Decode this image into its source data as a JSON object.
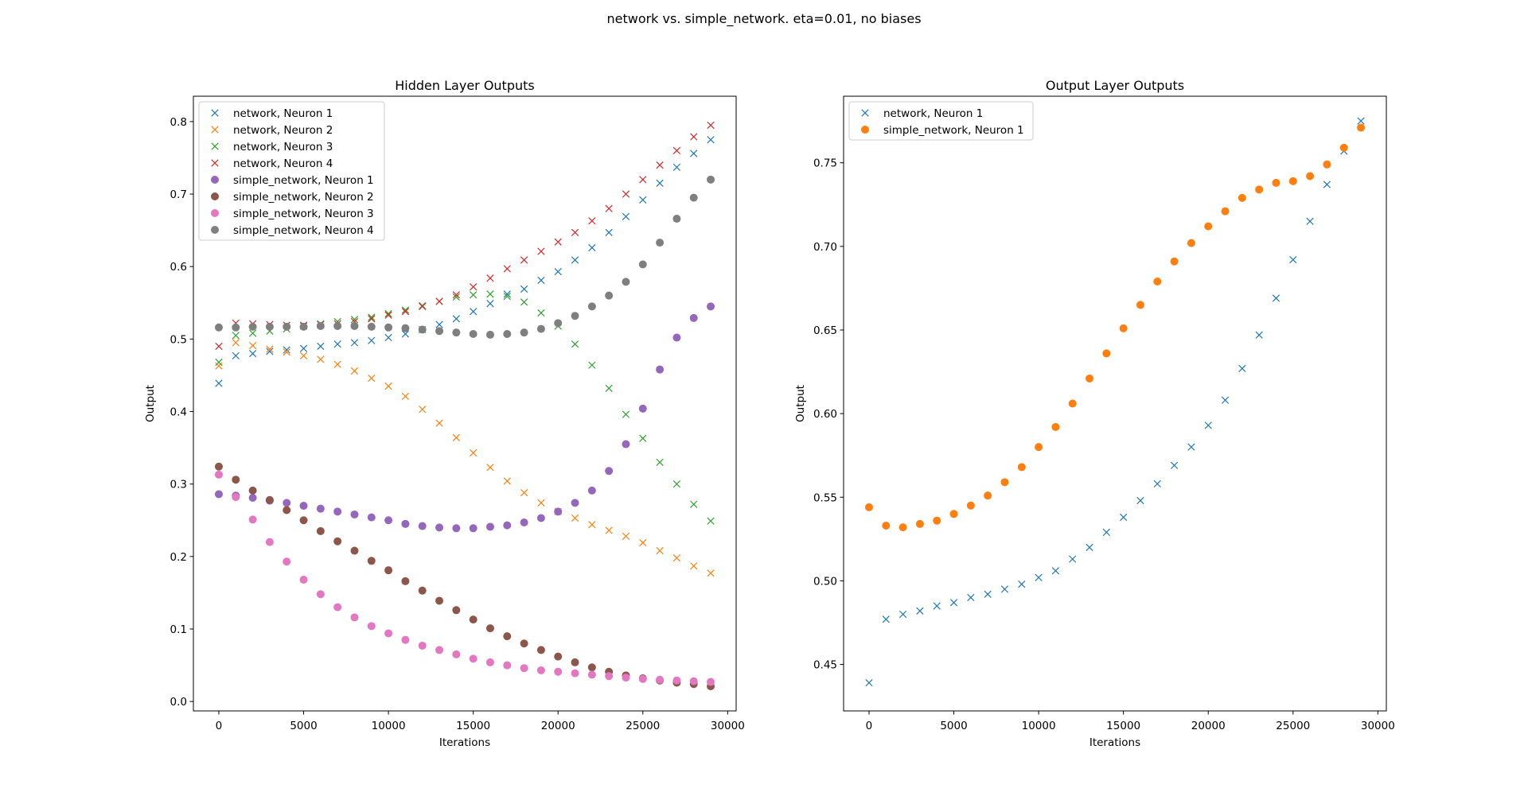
{
  "figure": {
    "suptitle": "network vs. simple_network. eta=0.01, no biases"
  },
  "chart_data": [
    {
      "type": "scatter",
      "title": "Hidden Layer Outputs",
      "xlabel": "Iterations",
      "ylabel": "Output",
      "xlim": [
        -1500,
        30500
      ],
      "ylim": [
        -0.013,
        0.835
      ],
      "xticks": [
        0,
        5000,
        10000,
        15000,
        20000,
        25000,
        30000
      ],
      "yticks": [
        0.0,
        0.1,
        0.2,
        0.3,
        0.4,
        0.5,
        0.6,
        0.7,
        0.8
      ],
      "ytick_decimals": 1,
      "grid": false,
      "legend_position": "upper-left",
      "x": [
        0,
        1000,
        2000,
        3000,
        4000,
        5000,
        6000,
        7000,
        8000,
        9000,
        10000,
        11000,
        12000,
        13000,
        14000,
        15000,
        16000,
        17000,
        18000,
        19000,
        20000,
        21000,
        22000,
        23000,
        24000,
        25000,
        26000,
        27000,
        28000,
        29000
      ],
      "series": [
        {
          "name": "network, Neuron 1",
          "marker": "x",
          "color": "#1f77b4",
          "values": [
            0.439,
            0.477,
            0.48,
            0.483,
            0.485,
            0.487,
            0.49,
            0.493,
            0.495,
            0.498,
            0.502,
            0.507,
            0.513,
            0.52,
            0.528,
            0.538,
            0.549,
            0.562,
            0.569,
            0.581,
            0.593,
            0.609,
            0.626,
            0.647,
            0.669,
            0.692,
            0.715,
            0.737,
            0.756,
            0.775
          ]
        },
        {
          "name": "network, Neuron 2",
          "marker": "x",
          "color": "#ff7f0e",
          "values": [
            0.463,
            0.495,
            0.491,
            0.486,
            0.482,
            0.477,
            0.472,
            0.465,
            0.456,
            0.446,
            0.435,
            0.421,
            0.403,
            0.384,
            0.364,
            0.343,
            0.323,
            0.304,
            0.288,
            0.274,
            0.262,
            0.253,
            0.244,
            0.236,
            0.228,
            0.219,
            0.208,
            0.198,
            0.187,
            0.177
          ]
        },
        {
          "name": "network, Neuron 3",
          "marker": "x",
          "color": "#2ca02c",
          "values": [
            0.468,
            0.505,
            0.508,
            0.511,
            0.514,
            0.518,
            0.521,
            0.524,
            0.527,
            0.53,
            0.535,
            0.54,
            0.546,
            0.552,
            0.558,
            0.561,
            0.562,
            0.559,
            0.551,
            0.536,
            0.518,
            0.493,
            0.464,
            0.432,
            0.396,
            0.363,
            0.33,
            0.3,
            0.272,
            0.249
          ]
        },
        {
          "name": "network, Neuron 4",
          "marker": "x",
          "color": "#d62728",
          "values": [
            0.49,
            0.522,
            0.521,
            0.52,
            0.519,
            0.519,
            0.52,
            0.521,
            0.524,
            0.528,
            0.533,
            0.538,
            0.545,
            0.552,
            0.561,
            0.572,
            0.584,
            0.597,
            0.609,
            0.621,
            0.634,
            0.647,
            0.663,
            0.68,
            0.7,
            0.72,
            0.74,
            0.76,
            0.779,
            0.795
          ]
        },
        {
          "name": "simple_network, Neuron 1",
          "marker": "o",
          "color": "#9467bd",
          "values": [
            0.286,
            0.284,
            0.281,
            0.277,
            0.274,
            0.27,
            0.266,
            0.262,
            0.258,
            0.254,
            0.25,
            0.245,
            0.242,
            0.24,
            0.239,
            0.239,
            0.241,
            0.243,
            0.247,
            0.253,
            0.262,
            0.274,
            0.291,
            0.318,
            0.355,
            0.404,
            0.458,
            0.502,
            0.529,
            0.545
          ]
        },
        {
          "name": "simple_network, Neuron 2",
          "marker": "o",
          "color": "#8c564b",
          "values": [
            0.324,
            0.306,
            0.291,
            0.278,
            0.264,
            0.25,
            0.235,
            0.221,
            0.208,
            0.194,
            0.181,
            0.166,
            0.153,
            0.139,
            0.126,
            0.113,
            0.101,
            0.09,
            0.08,
            0.071,
            0.062,
            0.054,
            0.047,
            0.041,
            0.036,
            0.032,
            0.029,
            0.026,
            0.024,
            0.021
          ]
        },
        {
          "name": "simple_network, Neuron 3",
          "marker": "o",
          "color": "#e377c2",
          "values": [
            0.313,
            0.282,
            0.251,
            0.22,
            0.193,
            0.168,
            0.148,
            0.13,
            0.116,
            0.104,
            0.094,
            0.085,
            0.077,
            0.071,
            0.065,
            0.059,
            0.054,
            0.05,
            0.046,
            0.043,
            0.041,
            0.039,
            0.037,
            0.035,
            0.033,
            0.031,
            0.03,
            0.029,
            0.028,
            0.027
          ]
        },
        {
          "name": "simple_network, Neuron 4",
          "marker": "o",
          "color": "#7f7f7f",
          "values": [
            0.516,
            0.516,
            0.517,
            0.517,
            0.517,
            0.517,
            0.518,
            0.518,
            0.518,
            0.517,
            0.516,
            0.515,
            0.513,
            0.511,
            0.509,
            0.507,
            0.506,
            0.507,
            0.509,
            0.514,
            0.522,
            0.532,
            0.545,
            0.56,
            0.579,
            0.603,
            0.633,
            0.666,
            0.695,
            0.72
          ]
        }
      ]
    },
    {
      "type": "scatter",
      "title": "Output Layer Outputs",
      "xlabel": "Iterations",
      "ylabel": "Output",
      "xlim": [
        -1500,
        30500
      ],
      "ylim": [
        0.4222,
        0.7898
      ],
      "xticks": [
        0,
        5000,
        10000,
        15000,
        20000,
        25000,
        30000
      ],
      "yticks": [
        0.45,
        0.5,
        0.55,
        0.6,
        0.65,
        0.7,
        0.75
      ],
      "ytick_decimals": 2,
      "grid": false,
      "legend_position": "upper-left",
      "x": [
        0,
        1000,
        2000,
        3000,
        4000,
        5000,
        6000,
        7000,
        8000,
        9000,
        10000,
        11000,
        12000,
        13000,
        14000,
        15000,
        16000,
        17000,
        18000,
        19000,
        20000,
        21000,
        22000,
        23000,
        24000,
        25000,
        26000,
        27000,
        28000,
        29000
      ],
      "series": [
        {
          "name": "network, Neuron 1",
          "marker": "x",
          "color": "#1f77b4",
          "values": [
            0.439,
            0.477,
            0.48,
            0.482,
            0.485,
            0.487,
            0.49,
            0.492,
            0.495,
            0.498,
            0.502,
            0.506,
            0.513,
            0.52,
            0.529,
            0.538,
            0.548,
            0.558,
            0.569,
            0.58,
            0.593,
            0.608,
            0.627,
            0.647,
            0.669,
            0.692,
            0.715,
            0.737,
            0.757,
            0.775
          ]
        },
        {
          "name": "simple_network, Neuron 1",
          "marker": "o",
          "color": "#ff7f0e",
          "values": [
            0.544,
            0.533,
            0.532,
            0.534,
            0.536,
            0.54,
            0.545,
            0.551,
            0.559,
            0.568,
            0.58,
            0.592,
            0.606,
            0.621,
            0.636,
            0.651,
            0.665,
            0.679,
            0.691,
            0.702,
            0.712,
            0.721,
            0.729,
            0.734,
            0.738,
            0.739,
            0.742,
            0.749,
            0.759,
            0.771
          ]
        }
      ]
    }
  ]
}
